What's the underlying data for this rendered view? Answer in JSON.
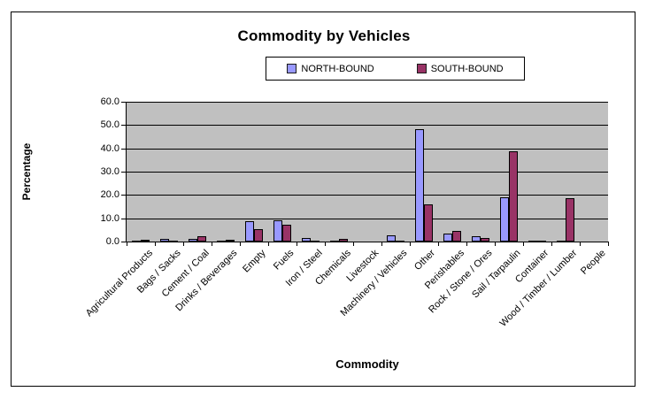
{
  "chart_data": {
    "type": "bar",
    "title": "Commodity by Vehicles",
    "xlabel": "Commodity",
    "ylabel": "Percentage",
    "ylim": [
      0,
      60
    ],
    "ytick_step": 10,
    "ytick_labels": [
      "0.0",
      "10.0",
      "20.0",
      "30.0",
      "40.0",
      "50.0",
      "60.0"
    ],
    "grid": true,
    "legend_position": "top-center",
    "plot_background": "#C0C0C0",
    "categories": [
      "Agricultural Products",
      "Bags / Sacks",
      "Cement / Coal",
      "Drinks / Beverages",
      "Empty",
      "Fuels",
      "Iron / Steel",
      "Chemicals",
      "Livestock",
      "Machinery / Vehicles",
      "Other",
      "Perishables",
      "Rock / Stone / Ores",
      "Sail / Tarpaulin",
      "Container",
      "Wood / Timber / Lumber",
      "People"
    ],
    "series": [
      {
        "name": "NORTH-BOUND",
        "color": "#9999FF",
        "values": [
          0.1,
          1.0,
          1.0,
          0.2,
          8.7,
          9.0,
          1.5,
          0.1,
          0.0,
          2.5,
          48.3,
          3.5,
          2.3,
          19.0,
          0.2,
          0.2,
          0.0
        ]
      },
      {
        "name": "SOUTH-BOUND",
        "color": "#993366",
        "values": [
          0.7,
          0.1,
          2.2,
          0.6,
          5.4,
          7.3,
          0.1,
          1.0,
          0.0,
          0.3,
          15.8,
          4.7,
          1.7,
          38.8,
          0.2,
          18.6,
          0.0
        ]
      }
    ]
  }
}
